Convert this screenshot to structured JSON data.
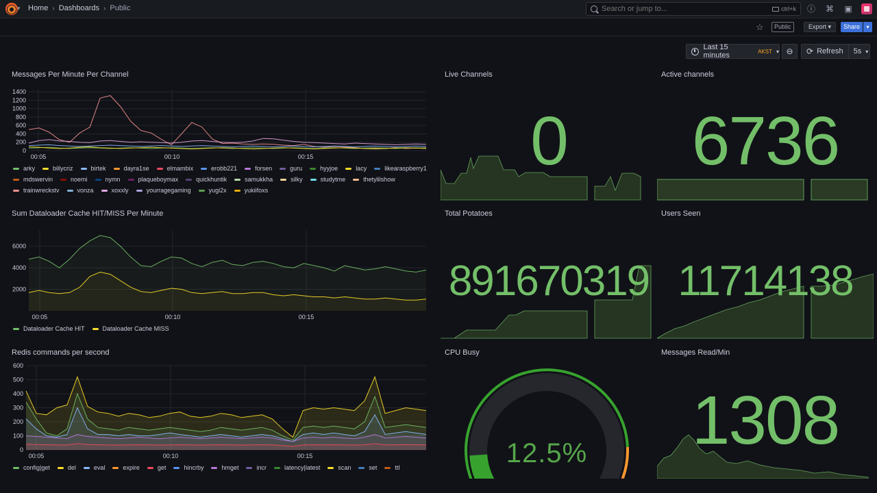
{
  "nav": {
    "breadcrumbs": [
      "Home",
      "Dashboards",
      "Public"
    ],
    "search_placeholder": "Search or jump to...",
    "search_shortcut": "ctrl+k"
  },
  "toolbar": {
    "public_badge": "Public",
    "export_label": "Export",
    "share_label": "Share"
  },
  "time": {
    "range_label": "Last 15 minutes",
    "timezone": "AKST",
    "refresh_label": "Refresh",
    "refresh_interval": "5s"
  },
  "panels": {
    "messages_per_minute": {
      "title": "Messages Per Minute Per Channel",
      "legend": [
        {
          "name": "arky",
          "color": "#73bf69"
        },
        {
          "name": "billycriz",
          "color": "#fade2a"
        },
        {
          "name": "birtek",
          "color": "#8ab8ff"
        },
        {
          "name": "dayra1se",
          "color": "#ff9830"
        },
        {
          "name": "elmambix",
          "color": "#f2495c"
        },
        {
          "name": "erobb221",
          "color": "#5794f2"
        },
        {
          "name": "forsen",
          "color": "#b877d9"
        },
        {
          "name": "guru",
          "color": "#705da0"
        },
        {
          "name": "hyyjoe",
          "color": "#37872d"
        },
        {
          "name": "lacy",
          "color": "#fade2a"
        },
        {
          "name": "likearaspberry1",
          "color": "#447ebc"
        },
        {
          "name": "mdswervin",
          "color": "#c15c17"
        },
        {
          "name": "noemi",
          "color": "#890f02"
        },
        {
          "name": "nymn",
          "color": "#0a437c"
        },
        {
          "name": "plaqueboymax",
          "color": "#6d1f62"
        },
        {
          "name": "quickhuntik",
          "color": "#584477"
        },
        {
          "name": "samukkha",
          "color": "#b7dbab"
        },
        {
          "name": "silky",
          "color": "#f4d598"
        },
        {
          "name": "studytme",
          "color": "#70dbed"
        },
        {
          "name": "thetylilshow",
          "color": "#f9ba8f"
        },
        {
          "name": "trainwreckstv",
          "color": "#f29191"
        },
        {
          "name": "vonza",
          "color": "#82b5d8"
        },
        {
          "name": "xoxxly",
          "color": "#e5a8e2"
        },
        {
          "name": "yourragegaming",
          "color": "#aea2e0"
        },
        {
          "name": "yugi2x",
          "color": "#629e51"
        },
        {
          "name": "yukiifoxs",
          "color": "#e5ac0e"
        }
      ],
      "chart_data": {
        "type": "line",
        "x_ticks": [
          "00:05",
          "00:10",
          "00:15"
        ],
        "y_ticks": [
          0,
          200,
          400,
          600,
          800,
          1000,
          1200,
          1400
        ],
        "ylim": [
          0,
          1450
        ],
        "series": [
          {
            "name": "trainwreckstv",
            "color": "#f29191",
            "values": [
              500,
              540,
              440,
              260,
              200,
              420,
              560,
              1250,
              1310,
              1050,
              700,
              480,
              420,
              270,
              140,
              400,
              670,
              560,
              280,
              170,
              180,
              160,
              150,
              160,
              150,
              130,
              120,
              150,
              100,
              80,
              100,
              90,
              70,
              50,
              60,
              50,
              70,
              50,
              60,
              70
            ]
          },
          {
            "name": "xoxxly",
            "color": "#e5a8e2",
            "values": [
              180,
              240,
              260,
              230,
              220,
              200,
              190,
              230,
              240,
              220,
              200,
              210,
              200,
              190,
              180,
              200,
              230,
              240,
              220,
              200,
              190,
              200,
              230,
              290,
              280,
              250,
              220,
              200,
              190,
              180,
              170,
              160,
              180,
              170,
              160,
              150,
              140,
              150,
              160,
              150
            ]
          },
          {
            "name": "birtek",
            "color": "#8ab8ff",
            "values": [
              120,
              130,
              140,
              120,
              110,
              100,
              110,
              120,
              130,
              120,
              110,
              100,
              110,
              120,
              110,
              100,
              110,
              120,
              110,
              100,
              90,
              100,
              110,
              100,
              90,
              100,
              110,
              100,
              90,
              100,
              110,
              100,
              90,
              100,
              110,
              100,
              90,
              100,
              110,
              100
            ]
          },
          {
            "name": "arky",
            "color": "#73bf69",
            "values": [
              60,
              70,
              80,
              60,
              50,
              60,
              70,
              60,
              50,
              60,
              70,
              60,
              50,
              60,
              70,
              60,
              50,
              60,
              70,
              60,
              50,
              60,
              70,
              60,
              50,
              60,
              70,
              60,
              50,
              60,
              70,
              60,
              50,
              60,
              70,
              60,
              50,
              60,
              70,
              60
            ]
          },
          {
            "name": "billycriz",
            "color": "#fade2a",
            "values": [
              90,
              80,
              60,
              50,
              60,
              80,
              90,
              70,
              60,
              50,
              60,
              70,
              80,
              70,
              60,
              50,
              40,
              50,
              60,
              70,
              60,
              50,
              40,
              50,
              60,
              70,
              60,
              50,
              40,
              50,
              60,
              70,
              60,
              50,
              40,
              50,
              60,
              70,
              60,
              50
            ]
          }
        ]
      }
    },
    "dataloader": {
      "title": "Sum Dataloader Cache HIT/MISS Per Minute",
      "legend": [
        {
          "name": "Dataloader Cache HIT",
          "color": "#73bf69"
        },
        {
          "name": "Dataloader Cache MISS",
          "color": "#fade2a"
        }
      ],
      "chart_data": {
        "type": "area",
        "x_ticks": [
          "00:05",
          "00:10",
          "00:15"
        ],
        "y_ticks": [
          2000,
          4000,
          6000
        ],
        "ylim": [
          0,
          7500
        ],
        "series": [
          {
            "name": "Dataloader Cache HIT",
            "color": "#73bf69",
            "values": [
              4800,
              5000,
              4600,
              4000,
              4800,
              5800,
              6500,
              7000,
              6800,
              6000,
              5000,
              4200,
              4100,
              4600,
              5000,
              4900,
              4400,
              4100,
              4500,
              4700,
              4300,
              4200,
              4500,
              4600,
              4400,
              4100,
              4000,
              4400,
              4200,
              4000,
              3700,
              4200,
              4000,
              3800,
              3900,
              4100,
              3900,
              3700,
              3600,
              3800
            ]
          },
          {
            "name": "Dataloader Cache MISS",
            "color": "#fade2a",
            "values": [
              1700,
              1900,
              1700,
              1600,
              1700,
              2200,
              3200,
              3600,
              3400,
              2800,
              2200,
              1800,
              1700,
              1900,
              2100,
              2000,
              1700,
              1600,
              1700,
              1800,
              1600,
              1600,
              1700,
              1700,
              1500,
              1400,
              1500,
              1400,
              1300,
              1300,
              1200,
              1300,
              1200,
              1100,
              1100,
              1200,
              1100,
              1000,
              1000,
              1100
            ]
          }
        ]
      }
    },
    "redis": {
      "title": "Redis commands per second",
      "legend": [
        {
          "name": "config|get",
          "color": "#73bf69"
        },
        {
          "name": "del",
          "color": "#fade2a"
        },
        {
          "name": "eval",
          "color": "#8ab8ff"
        },
        {
          "name": "expire",
          "color": "#ff9830"
        },
        {
          "name": "get",
          "color": "#f2495c"
        },
        {
          "name": "hincrby",
          "color": "#5794f2"
        },
        {
          "name": "hmget",
          "color": "#b877d9"
        },
        {
          "name": "incr",
          "color": "#705da0"
        },
        {
          "name": "latency|latest",
          "color": "#37872d"
        },
        {
          "name": "scan",
          "color": "#fade2a"
        },
        {
          "name": "set",
          "color": "#447ebc"
        },
        {
          "name": "ttl",
          "color": "#c15c17"
        }
      ],
      "chart_data": {
        "type": "area",
        "x_ticks": [
          "00:05",
          "00:10",
          "00:15"
        ],
        "y_ticks": [
          0,
          100,
          200,
          300,
          400,
          500,
          600
        ],
        "ylim": [
          0,
          600
        ],
        "series": [
          {
            "name": "del",
            "color": "#fade2a",
            "values": [
              420,
              260,
              250,
              300,
              320,
              520,
              310,
              270,
              260,
              240,
              260,
              250,
              230,
              240,
              260,
              270,
              240,
              230,
              240,
              260,
              250,
              230,
              240,
              250,
              220,
              150,
              90,
              280,
              300,
              290,
              300,
              290,
              280,
              350,
              520,
              260,
              280,
              300,
              290,
              280
            ]
          },
          {
            "name": "config|get",
            "color": "#73bf69",
            "values": [
              340,
              220,
              120,
              100,
              150,
              400,
              220,
              160,
              150,
              140,
              160,
              150,
              140,
              150,
              160,
              150,
              140,
              130,
              140,
              160,
              150,
              140,
              150,
              160,
              140,
              100,
              70,
              160,
              170,
              160,
              170,
              160,
              150,
              200,
              380,
              160,
              170,
              180,
              170,
              160
            ]
          },
          {
            "name": "eval",
            "color": "#8ab8ff",
            "values": [
              220,
              150,
              100,
              90,
              110,
              300,
              150,
              110,
              110,
              100,
              110,
              100,
              100,
              110,
              120,
              110,
              100,
              90,
              100,
              110,
              100,
              90,
              100,
              110,
              100,
              80,
              60,
              110,
              120,
              110,
              120,
              110,
              100,
              130,
              250,
              110,
              120,
              130,
              120,
              110
            ]
          },
          {
            "name": "hmget",
            "color": "#b877d9",
            "values": [
              100,
              95,
              90,
              85,
              80,
              110,
              95,
              90,
              85,
              80,
              85,
              90,
              85,
              80,
              85,
              90,
              85,
              80,
              85,
              90,
              85,
              80,
              85,
              90,
              85,
              70,
              60,
              85,
              90,
              85,
              90,
              85,
              80,
              90,
              110,
              85,
              90,
              95,
              90,
              85
            ]
          },
          {
            "name": "get",
            "color": "#f2495c",
            "values": [
              40,
              38,
              36,
              35,
              34,
              45,
              38,
              36,
              35,
              34,
              35,
              36,
              35,
              34,
              35,
              36,
              35,
              34,
              35,
              36,
              35,
              34,
              35,
              36,
              35,
              30,
              25,
              35,
              36,
              35,
              36,
              35,
              34,
              36,
              44,
              35,
              36,
              37,
              36,
              35
            ]
          }
        ]
      }
    },
    "live_channels": {
      "title": "Live Channels",
      "value": "0"
    },
    "active_channels": {
      "title": "Active channels",
      "value": "6736"
    },
    "total_potatoes": {
      "title": "Total Potatoes",
      "value": "891670319"
    },
    "users_seen": {
      "title": "Users Seen",
      "value": "11714138"
    },
    "cpu_busy": {
      "title": "CPU Busy",
      "value": "12.5%",
      "percent": 12.5
    },
    "messages_read": {
      "title": "Messages Read/Min",
      "value": "1308"
    }
  },
  "colors": {
    "background": "#111217",
    "stat_green": "#73bf69",
    "accent_blue": "#3d71d9"
  }
}
